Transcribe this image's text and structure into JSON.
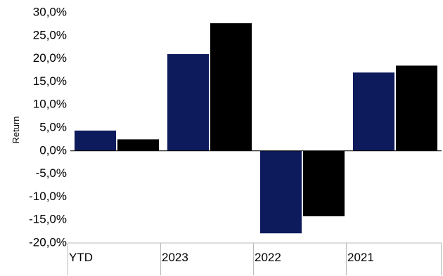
{
  "chart_data": {
    "type": "bar",
    "title": "",
    "xlabel": "",
    "ylabel": "Return",
    "categories": [
      "YTD",
      "2023",
      "2022",
      "2021"
    ],
    "series": [
      {
        "color": "#0d1b5c",
        "values": [
          4.4,
          21.0,
          -17.9,
          17.0
        ]
      },
      {
        "color": "#000000",
        "values": [
          2.5,
          27.7,
          -14.2,
          18.5
        ]
      }
    ],
    "y_ticks": [
      "30,0%",
      "25,0%",
      "20,0%",
      "15,0%",
      "10,0%",
      "5,0%",
      "0,0%",
      "-5,0%",
      "-10,0%",
      "-15,0%",
      "-20,0%"
    ],
    "y_tick_values": [
      30,
      25,
      20,
      15,
      10,
      5,
      0,
      -5,
      -10,
      -15,
      -20
    ],
    "ylim": [
      -20,
      30
    ],
    "grid": false,
    "legend": "none"
  }
}
